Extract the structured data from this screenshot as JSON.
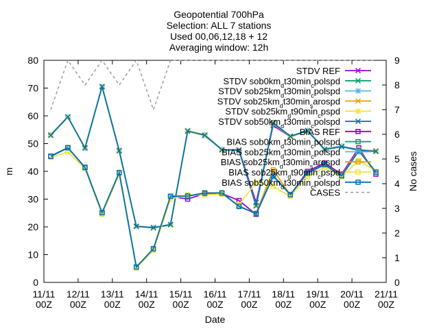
{
  "chart_data": {
    "type": "line",
    "title": [
      "Geopotential 700hPa",
      "Selection: ALL      7 stations",
      "Used 00,06,12,18 + 12",
      "Averaging window: 12h"
    ],
    "xlabel": "Date",
    "ylabel": "m",
    "y2label": "No cases",
    "ylim": [
      0,
      80
    ],
    "y2lim": [
      0,
      9
    ],
    "yticks": [
      0,
      10,
      20,
      30,
      40,
      50,
      60,
      70,
      80
    ],
    "y2ticks": [
      0,
      1,
      2,
      3,
      4,
      5,
      6,
      7,
      8,
      9
    ],
    "xlim": [
      0,
      10
    ],
    "xticks": [
      {
        "x": 0,
        "l1": "11/11",
        "l2": "00Z"
      },
      {
        "x": 1,
        "l1": "12/11",
        "l2": "00Z"
      },
      {
        "x": 2,
        "l1": "13/11",
        "l2": "00Z"
      },
      {
        "x": 3,
        "l1": "14/11",
        "l2": "00Z"
      },
      {
        "x": 4,
        "l1": "15/11",
        "l2": "00Z"
      },
      {
        "x": 5,
        "l1": "16/11",
        "l2": "00Z"
      },
      {
        "x": 6,
        "l1": "17/11",
        "l2": "00Z"
      },
      {
        "x": 7,
        "l1": "18/11",
        "l2": "00Z"
      },
      {
        "x": 8,
        "l1": "19/11",
        "l2": "00Z"
      },
      {
        "x": 9,
        "l1": "20/11",
        "l2": "00Z"
      },
      {
        "x": 10,
        "l1": "21/11",
        "l2": "00Z"
      }
    ],
    "x": [
      0.2,
      0.7,
      1.2,
      1.7,
      2.2,
      2.7,
      3.2,
      3.7,
      4.2,
      4.7,
      5.2,
      5.7,
      6.2,
      6.7,
      7.2,
      7.7,
      8.2,
      8.7,
      9.2,
      9.7
    ],
    "series": [
      {
        "name": "STDV REF",
        "color": "#9400d3",
        "marker": "cross",
        "axis": "y",
        "values": [
          53.0,
          59.5,
          48.5,
          70.5,
          47.5,
          20.2,
          19.7,
          20.8,
          54.5,
          53.0,
          47.7,
          47.8,
          28.8,
          56.5,
          52.5,
          54.5,
          48.0,
          49.0,
          47.8,
          47.3
        ]
      },
      {
        "name": "STDV sob0km_dt30min_cpolspd",
        "color": "#009e73",
        "marker": "cross",
        "axis": "y",
        "values": [
          53.0,
          59.6,
          48.4,
          70.6,
          47.6,
          20.2,
          19.6,
          20.7,
          54.7,
          52.8,
          47.8,
          47.6,
          27.6,
          57.5,
          52.7,
          54.7,
          47.8,
          49.0,
          47.6,
          47.3
        ]
      },
      {
        "name": "STDV sob25km_dt30min_cpolspd",
        "color": "#56b4e9",
        "marker": "star",
        "axis": "y",
        "values": [
          53.2,
          59.7,
          48.3,
          70.5,
          47.4,
          20.1,
          19.8,
          20.9,
          54.4,
          53.2,
          47.9,
          47.5,
          27.8,
          57.0,
          52.6,
          54.8,
          48.1,
          49.1,
          47.5,
          47.2
        ]
      },
      {
        "name": "STDV sob25km_dt30min_sarospd",
        "color": "#e69f00",
        "marker": "cross",
        "axis": "y",
        "values": [
          53.1,
          59.5,
          48.6,
          70.4,
          47.5,
          20.3,
          19.7,
          20.8,
          54.6,
          53.1,
          47.6,
          47.7,
          27.5,
          57.2,
          52.4,
          54.6,
          48.0,
          48.9,
          47.7,
          47.4
        ]
      },
      {
        "name": "STDV sob25km_dt90min_cpspd",
        "color": "#f0e442",
        "marker": "star",
        "axis": "y",
        "values": [
          52.9,
          59.4,
          48.5,
          70.3,
          47.3,
          20.2,
          19.6,
          20.7,
          54.3,
          52.9,
          47.7,
          47.6,
          27.7,
          57.3,
          52.5,
          54.5,
          47.9,
          48.8,
          47.6,
          47.1
        ]
      },
      {
        "name": "STDV sob50km_dt30min_cpolspd",
        "color": "#0072b2",
        "marker": "cross",
        "axis": "y",
        "values": [
          53.0,
          59.6,
          48.4,
          70.5,
          47.4,
          20.2,
          19.7,
          20.8,
          54.5,
          53.0,
          47.8,
          47.6,
          27.6,
          57.4,
          52.6,
          54.6,
          47.9,
          48.9,
          47.6,
          47.2
        ]
      },
      {
        "name": "BIAS REF",
        "color": "#9400d3",
        "marker": "square",
        "axis": "y",
        "values": [
          45.5,
          48.5,
          41.5,
          25.0,
          39.5,
          5.5,
          12.0,
          31.0,
          30.0,
          32.0,
          32.0,
          29.5,
          24.5,
          38.5,
          31.5,
          40.0,
          43.0,
          39.0,
          48.5,
          39.0
        ]
      },
      {
        "name": "BIAS sob0km_dt30min_cpolspd",
        "color": "#009e73",
        "marker": "square",
        "axis": "y",
        "values": [
          45.5,
          48.6,
          41.4,
          25.1,
          39.6,
          5.5,
          12.1,
          31.0,
          31.0,
          32.2,
          32.3,
          27.5,
          24.7,
          38.3,
          31.7,
          39.5,
          42.5,
          38.5,
          47.5,
          39.8
        ]
      },
      {
        "name": "BIAS sob25km_dt30min_cpolspd",
        "color": "#56b4e9",
        "marker": "square",
        "axis": "y",
        "values": [
          45.3,
          48.4,
          41.5,
          25.2,
          39.4,
          5.6,
          12.0,
          30.9,
          31.2,
          32.1,
          32.1,
          27.3,
          24.8,
          38.1,
          31.6,
          39.3,
          42.3,
          38.3,
          47.3,
          39.6
        ]
      },
      {
        "name": "BIAS sob25km_dt30min_sarospd",
        "color": "#e69f00",
        "marker": "square",
        "axis": "y",
        "values": [
          45.4,
          48.5,
          41.3,
          25.0,
          39.5,
          5.4,
          12.2,
          31.1,
          31.1,
          32.3,
          32.2,
          27.4,
          24.9,
          40.5,
          31.5,
          39.4,
          42.4,
          38.6,
          47.8,
          39.7
        ]
      },
      {
        "name": "BIAS sob25km_dt90min_cpspd",
        "color": "#f0e442",
        "marker": "square",
        "axis": "y",
        "values": [
          45.0,
          47.0,
          41.0,
          24.5,
          39.0,
          5.2,
          11.5,
          30.0,
          31.5,
          31.5,
          31.8,
          28.0,
          36.0,
          34.5,
          31.0,
          38.0,
          41.5,
          38.0,
          44.0,
          40.0
        ]
      },
      {
        "name": "BIAS sob50km_dt30min_cpolspd",
        "color": "#0072b2",
        "marker": "square",
        "axis": "y",
        "values": [
          45.4,
          48.5,
          41.4,
          25.1,
          39.5,
          5.5,
          12.1,
          31.0,
          31.1,
          32.2,
          32.2,
          27.4,
          24.8,
          38.4,
          31.6,
          39.4,
          42.4,
          38.4,
          47.4,
          39.7
        ]
      },
      {
        "name": "CASES",
        "color": "#999999",
        "marker": "none",
        "dashed": true,
        "axis": "y2",
        "values": [
          7,
          9,
          8,
          9,
          8,
          9,
          7,
          9,
          9,
          9,
          9,
          9,
          9,
          9,
          9,
          9,
          9,
          9,
          9,
          9
        ]
      }
    ],
    "legend": {
      "placement": "top-right",
      "entries": [
        {
          "text": "STDV REF"
        },
        {
          "text": "STDV sob0km",
          "sub": "d",
          "rest": "t30min",
          "sub2": "c",
          "rest2": "polspd"
        },
        {
          "text": "STDV sob25km",
          "sub": "d",
          "rest": "t30min",
          "sub2": "c",
          "rest2": "polspd"
        },
        {
          "text": "STDV sob25km",
          "sub": "d",
          "rest": "t30min",
          "sub2": "s",
          "rest2": "arospd"
        },
        {
          "text": "STDV sob25km",
          "sub": "d",
          "rest": "t90min",
          "sub2": "c",
          "rest2": "pspd"
        },
        {
          "text": "STDV sob50km",
          "sub": "d",
          "rest": "t30min",
          "sub2": "c",
          "rest2": "polspd"
        },
        {
          "text": "BIAS REF"
        },
        {
          "text": "BIAS sob0km",
          "sub": "d",
          "rest": "t30min",
          "sub2": "c",
          "rest2": "polspd"
        },
        {
          "text": "BIAS sob25km",
          "sub": "d",
          "rest": "t30min",
          "sub2": "c",
          "rest2": "polspd"
        },
        {
          "text": "BIAS sob25km",
          "sub": "d",
          "rest": "t30min",
          "sub2": "s",
          "rest2": "arospd"
        },
        {
          "text": "BIAS sob25km",
          "sub": "d",
          "rest": "t90min",
          "sub2": "c",
          "rest2": "pspd"
        },
        {
          "text": "BIAS sob50km",
          "sub": "d",
          "rest": "t30min",
          "sub2": "c",
          "rest2": "polspd"
        },
        {
          "text": "CASES"
        }
      ]
    }
  }
}
